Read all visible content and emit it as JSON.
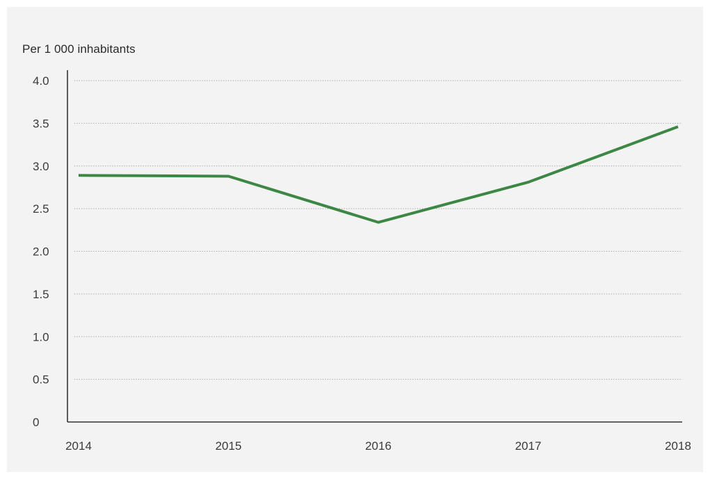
{
  "chart_data": {
    "type": "line",
    "unit_label": "Per 1 000 inhabitants",
    "title": "",
    "xlabel": "",
    "ylabel": "",
    "categories": [
      "2014",
      "2015",
      "2016",
      "2017",
      "2018"
    ],
    "series": [
      {
        "values": [
          2.89,
          2.88,
          2.34,
          2.81,
          3.46
        ],
        "color": "#3d8744"
      }
    ],
    "ylim": [
      0,
      4.0
    ],
    "yticks": [
      0,
      0.5,
      1.0,
      1.5,
      2.0,
      2.5,
      3.0,
      3.5,
      4.0
    ],
    "ytick_labels": [
      "0",
      "0.5",
      "1.0",
      "1.5",
      "2.0",
      "2.5",
      "3.0",
      "3.5",
      "4.0"
    ],
    "grid": "horizontal dotted",
    "legend": "none",
    "colors": {
      "background": "#f3f3f3",
      "line": "#3d8744",
      "axis": "#333333",
      "grid": "#9a9a9a"
    }
  }
}
